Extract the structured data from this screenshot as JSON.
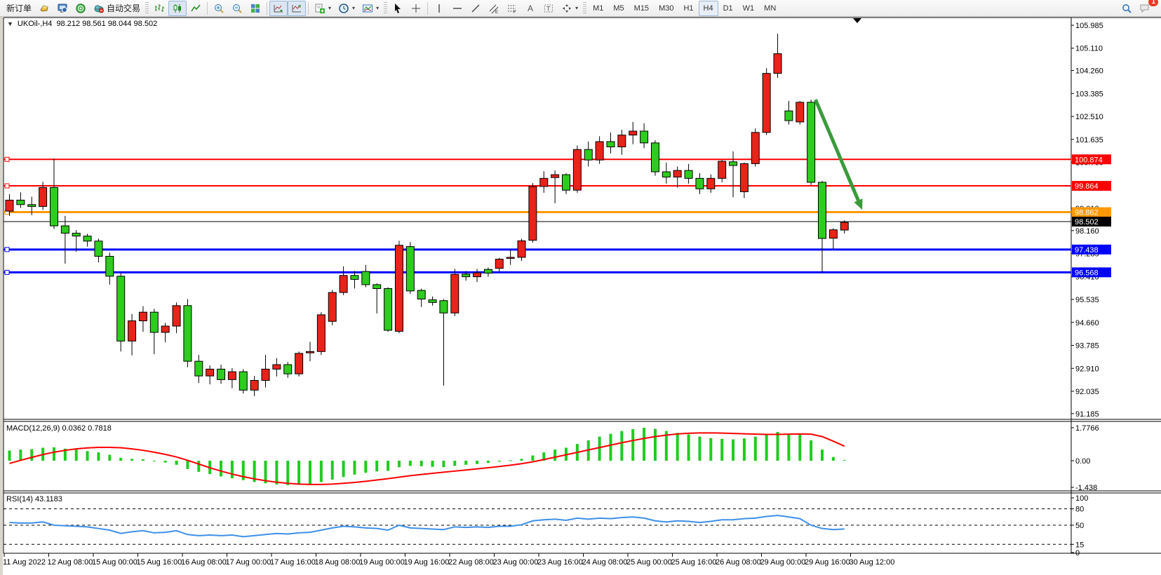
{
  "toolbar": {
    "new_order_label": "新订单",
    "autotrading_label": "自动交易",
    "notification_badge": "1",
    "icon_names": [
      "gold-nugget-icon",
      "terminal-icon",
      "signal-icon",
      "autotrading-cloud-icon",
      "bar-chart-icon",
      "candlestick-chart-icon",
      "line-chart-icon",
      "zoom-in-icon",
      "zoom-out-icon",
      "tile-windows-icon",
      "auto-scroll-icon",
      "chart-shift-icon",
      "new-chart-dropdown-icon",
      "period-clock-dropdown-icon",
      "template-dropdown-icon",
      "cursor-icon",
      "crosshair-icon",
      "vertical-line-icon",
      "horizontal-line-icon",
      "trendline-icon",
      "channel-icon",
      "fibonacci-icon",
      "text-icon",
      "label-icon",
      "shapes-dropdown-icon",
      "search-icon",
      "chat-icon"
    ],
    "timeframes": [
      "M1",
      "M5",
      "M15",
      "M30",
      "H1",
      "H4",
      "D1",
      "W1",
      "MN"
    ],
    "active_timeframe": "H4"
  },
  "chart": {
    "title_symbol": "UKOil-,H4",
    "title_ohlc": "98.212 98.561 98.044 98.502"
  },
  "macd_panel": {
    "label": "MACD(12,26,9) 0.0362 0.7818"
  },
  "rsi_panel": {
    "label": "RSI(14) 43.1183"
  },
  "chart_data": {
    "type": "candlestick",
    "symbol": "UKOil-",
    "timeframe": "H4",
    "colors": {
      "up": "#e8231a",
      "down": "#2ecc1e",
      "wick": "#000000",
      "macd_hist": "#1fcc1f",
      "macd_signal": "#ff0000",
      "rsi_line": "#3e90e8",
      "arrow": "#3a9a3a"
    },
    "price_ticks": [
      "105.985",
      "105.110",
      "104.260",
      "103.385",
      "102.510",
      "101.635",
      "100.760",
      "99.010",
      "98.160",
      "97.285",
      "96.410",
      "95.535",
      "94.660",
      "93.785",
      "92.910",
      "92.035",
      "91.185"
    ],
    "time_labels": [
      "11 Aug 2022",
      "12 Aug 08:00",
      "15 Aug 00:00",
      "15 Aug 16:00",
      "16 Aug 08:00",
      "17 Aug 00:00",
      "17 Aug 16:00",
      "18 Aug 08:00",
      "19 Aug 00:00",
      "19 Aug 16:00",
      "22 Aug 08:00",
      "23 Aug 00:00",
      "23 Aug 16:00",
      "24 Aug 08:00",
      "25 Aug 00:00",
      "25 Aug 16:00",
      "26 Aug 08:00",
      "29 Aug 00:00",
      "29 Aug 16:00",
      "30 Aug 12:00"
    ],
    "hlines": [
      {
        "price": 100.874,
        "label": "100.874",
        "color": "#ff0000",
        "width": 2,
        "text": "#ffffff"
      },
      {
        "price": 99.864,
        "label": "99.864",
        "color": "#ff0000",
        "width": 2,
        "text": "#ffffff"
      },
      {
        "price": 98.862,
        "label": "98.862",
        "color": "#ff9800",
        "width": 3,
        "text": "#ffffff"
      },
      {
        "price": 97.438,
        "label": "97.438",
        "color": "#0000ff",
        "width": 3,
        "text": "#ffffff"
      },
      {
        "price": 96.568,
        "label": "96.568",
        "color": "#0000ff",
        "width": 3,
        "text": "#ffffff"
      }
    ],
    "current_price": {
      "price": 98.502,
      "label": "98.502",
      "color": "#000000",
      "text": "#ffffff"
    },
    "candles_ohlc": [
      [
        98.9,
        99.55,
        98.72,
        99.32
      ],
      [
        99.32,
        99.62,
        99.02,
        99.15
      ],
      [
        99.15,
        99.45,
        98.75,
        99.08
      ],
      [
        99.08,
        100.02,
        98.95,
        99.8
      ],
      [
        99.8,
        100.9,
        98.22,
        98.34
      ],
      [
        98.34,
        98.72,
        96.9,
        98.06
      ],
      [
        98.06,
        98.18,
        97.35,
        97.95
      ],
      [
        97.95,
        98.04,
        97.55,
        97.76
      ],
      [
        97.76,
        97.85,
        96.95,
        97.18
      ],
      [
        97.18,
        97.32,
        96.1,
        96.42
      ],
      [
        96.42,
        96.55,
        93.55,
        93.95
      ],
      [
        93.95,
        94.98,
        93.4,
        94.72
      ],
      [
        94.72,
        95.28,
        94.3,
        95.05
      ],
      [
        95.05,
        95.18,
        93.45,
        94.28
      ],
      [
        94.28,
        94.65,
        93.9,
        94.52
      ],
      [
        94.52,
        95.42,
        94.25,
        95.3
      ],
      [
        95.3,
        95.55,
        92.95,
        93.18
      ],
      [
        93.18,
        93.42,
        92.35,
        92.62
      ],
      [
        92.62,
        93.02,
        92.3,
        92.88
      ],
      [
        92.88,
        93.05,
        92.32,
        92.48
      ],
      [
        92.48,
        92.92,
        92.15,
        92.78
      ],
      [
        92.78,
        92.88,
        91.95,
        92.08
      ],
      [
        92.08,
        92.62,
        91.85,
        92.45
      ],
      [
        92.45,
        93.42,
        92.18,
        92.88
      ],
      [
        92.88,
        93.3,
        92.6,
        93.05
      ],
      [
        93.05,
        93.15,
        92.55,
        92.7
      ],
      [
        92.7,
        93.55,
        92.6,
        93.48
      ],
      [
        93.5,
        93.92,
        93.18,
        93.55
      ],
      [
        93.55,
        95.05,
        93.42,
        94.95
      ],
      [
        94.7,
        95.9,
        94.55,
        95.8
      ],
      [
        95.8,
        96.8,
        95.7,
        96.45
      ],
      [
        96.45,
        96.62,
        95.95,
        96.3
      ],
      [
        96.6,
        96.85,
        96.0,
        96.1
      ],
      [
        96.1,
        96.15,
        95.0,
        95.95
      ],
      [
        95.95,
        96.0,
        94.3,
        94.36
      ],
      [
        94.32,
        97.77,
        94.25,
        97.6
      ],
      [
        97.55,
        97.72,
        95.75,
        95.86
      ],
      [
        95.88,
        95.95,
        95.25,
        95.55
      ],
      [
        95.52,
        95.65,
        95.3,
        95.42
      ],
      [
        95.49,
        95.55,
        92.25,
        95.02
      ],
      [
        95.02,
        96.7,
        94.9,
        96.49
      ],
      [
        96.5,
        96.62,
        96.25,
        96.4
      ],
      [
        96.4,
        96.7,
        96.2,
        96.55
      ],
      [
        96.68,
        96.75,
        96.4,
        96.54
      ],
      [
        96.72,
        97.12,
        96.6,
        97.07
      ],
      [
        97.1,
        97.45,
        96.85,
        97.14
      ],
      [
        97.14,
        97.85,
        97.0,
        97.77
      ],
      [
        97.79,
        99.97,
        97.7,
        99.84
      ],
      [
        99.84,
        100.42,
        99.6,
        100.15
      ],
      [
        100.18,
        100.45,
        99.2,
        100.29
      ],
      [
        100.29,
        100.35,
        99.55,
        99.7
      ],
      [
        99.7,
        101.4,
        99.6,
        101.25
      ],
      [
        101.25,
        101.55,
        100.6,
        100.85
      ],
      [
        100.85,
        101.75,
        100.7,
        101.55
      ],
      [
        101.55,
        101.9,
        101.1,
        101.35
      ],
      [
        101.35,
        102.0,
        101.05,
        101.8
      ],
      [
        101.8,
        102.3,
        101.45,
        101.95
      ],
      [
        101.95,
        102.25,
        101.3,
        101.5
      ],
      [
        101.5,
        101.6,
        100.25,
        100.4
      ],
      [
        100.4,
        100.75,
        99.95,
        100.2
      ],
      [
        100.2,
        100.6,
        99.8,
        100.45
      ],
      [
        100.45,
        100.7,
        99.95,
        100.15
      ],
      [
        100.15,
        100.35,
        99.55,
        99.75
      ],
      [
        99.75,
        100.3,
        99.6,
        100.15
      ],
      [
        100.15,
        100.85,
        100.0,
        100.8
      ],
      [
        100.78,
        101.18,
        99.43,
        100.64
      ],
      [
        99.64,
        100.75,
        99.4,
        100.71
      ],
      [
        100.71,
        102.05,
        100.6,
        101.9
      ],
      [
        101.9,
        104.35,
        101.8,
        104.15
      ],
      [
        104.15,
        105.66,
        103.98,
        104.9
      ],
      [
        102.72,
        103.1,
        102.2,
        102.35
      ],
      [
        102.3,
        103.1,
        102.2,
        103.05
      ],
      [
        103.05,
        103.15,
        99.9,
        100.0
      ],
      [
        100.0,
        100.05,
        96.55,
        97.86
      ],
      [
        97.87,
        98.25,
        97.45,
        98.19
      ],
      [
        98.18,
        98.55,
        98.05,
        98.47
      ]
    ],
    "indicators": {
      "macd": {
        "label": "MACD(12,26,9) 0.0362 0.7818",
        "axis_labels": [
          "1.7766",
          "0.00",
          "-1.438"
        ],
        "histogram": [
          0.55,
          0.6,
          0.62,
          0.7,
          0.72,
          0.65,
          0.6,
          0.52,
          0.45,
          0.32,
          0.15,
          0.1,
          0.08,
          -0.02,
          -0.1,
          -0.22,
          -0.45,
          -0.6,
          -0.72,
          -0.85,
          -0.95,
          -1.05,
          -1.15,
          -1.22,
          -1.28,
          -1.32,
          -1.3,
          -1.25,
          -1.15,
          -1.02,
          -0.88,
          -0.75,
          -0.65,
          -0.58,
          -0.55,
          -0.35,
          -0.28,
          -0.3,
          -0.33,
          -0.35,
          -0.28,
          -0.22,
          -0.18,
          -0.12,
          -0.05,
          0.02,
          0.1,
          0.28,
          0.45,
          0.6,
          0.7,
          0.9,
          1.1,
          1.3,
          1.45,
          1.6,
          1.7,
          1.7766,
          1.72,
          1.6,
          1.5,
          1.42,
          1.3,
          1.22,
          1.18,
          1.15,
          1.2,
          1.3,
          1.45,
          1.55,
          1.45,
          1.4,
          1.1,
          0.6,
          0.2,
          0.0362
        ],
        "signal": [
          -0.15,
          0.02,
          0.18,
          0.33,
          0.46,
          0.56,
          0.64,
          0.69,
          0.72,
          0.72,
          0.7,
          0.64,
          0.56,
          0.46,
          0.34,
          0.2,
          0.02,
          -0.18,
          -0.38,
          -0.56,
          -0.72,
          -0.86,
          -0.98,
          -1.08,
          -1.16,
          -1.22,
          -1.26,
          -1.28,
          -1.28,
          -1.26,
          -1.22,
          -1.17,
          -1.11,
          -1.04,
          -0.97,
          -0.89,
          -0.81,
          -0.74,
          -0.68,
          -0.62,
          -0.56,
          -0.5,
          -0.44,
          -0.38,
          -0.31,
          -0.24,
          -0.16,
          -0.06,
          0.06,
          0.19,
          0.32,
          0.45,
          0.58,
          0.71,
          0.84,
          0.97,
          1.09,
          1.2,
          1.3,
          1.38,
          1.44,
          1.48,
          1.5,
          1.5,
          1.49,
          1.47,
          1.45,
          1.43,
          1.42,
          1.42,
          1.43,
          1.44,
          1.43,
          1.3,
          1.05,
          0.7818
        ]
      },
      "rsi": {
        "label": "RSI(14) 43.1183",
        "axis_labels": [
          "100",
          "80",
          "50",
          "15",
          "0"
        ],
        "levels": [
          80,
          50,
          15
        ],
        "values": [
          55,
          54,
          54,
          56,
          50,
          49,
          48,
          47,
          44,
          41,
          35,
          38,
          40,
          36,
          37,
          40,
          33,
          31,
          32,
          31,
          32,
          29,
          31,
          33,
          35,
          34,
          36,
          37,
          41,
          45,
          48,
          47,
          45,
          44,
          41,
          50,
          45,
          44,
          43,
          42,
          47,
          46,
          47,
          46,
          48,
          48,
          51,
          58,
          60,
          61,
          59,
          63,
          61,
          63,
          62,
          64,
          65,
          63,
          58,
          56,
          58,
          57,
          55,
          57,
          60,
          60,
          62,
          63,
          66,
          68,
          65,
          62,
          50,
          44,
          42,
          43.1183
        ]
      }
    },
    "annotation_arrow": {
      "from_bar": 72.4,
      "from_price": 103.15,
      "to_bar": 76.6,
      "to_price": 98.95,
      "color": "#3a9a3a"
    }
  }
}
